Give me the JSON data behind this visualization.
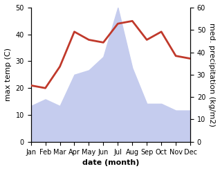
{
  "months": [
    "Jan",
    "Feb",
    "Mar",
    "Apr",
    "May",
    "Jun",
    "Jul",
    "Aug",
    "Sep",
    "Oct",
    "Nov",
    "Dec"
  ],
  "temperature": [
    21,
    20,
    28,
    41,
    38,
    37,
    44,
    45,
    38,
    41,
    32,
    31
  ],
  "precipitation": [
    16,
    19,
    16,
    30,
    32,
    38,
    60,
    33,
    17,
    17,
    14,
    14
  ],
  "temp_color": "#c0392b",
  "precip_fill_color": "#c5ccee",
  "temp_ylim": [
    0,
    50
  ],
  "precip_ylim": [
    0,
    60
  ],
  "ylabel_left": "max temp (C)",
  "ylabel_right": "med. precipitation (kg/m2)",
  "xlabel": "date (month)",
  "temp_linewidth": 2.0,
  "label_fontsize": 8,
  "tick_fontsize": 7
}
